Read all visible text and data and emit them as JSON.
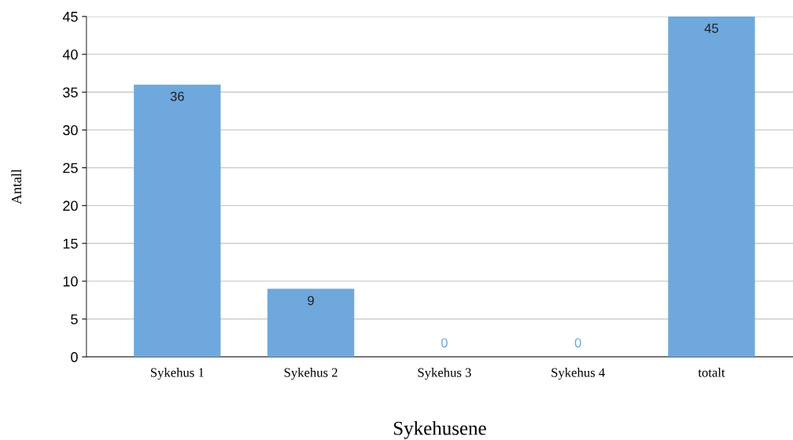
{
  "chart_data": {
    "type": "bar",
    "xlabel": "Sykehusene",
    "ylabel": "Antall",
    "categories": [
      "Sykehus 1",
      "Sykehus 2",
      "Sykehus 3",
      "Sykehus 4",
      "totalt"
    ],
    "values": [
      36,
      9,
      0,
      0,
      45
    ],
    "color": "#6fa8dc",
    "ylim": [
      0,
      45
    ],
    "yticks": [
      0,
      5,
      10,
      15,
      20,
      25,
      30,
      35,
      40,
      45
    ],
    "grid": "y",
    "data_labels": true
  }
}
